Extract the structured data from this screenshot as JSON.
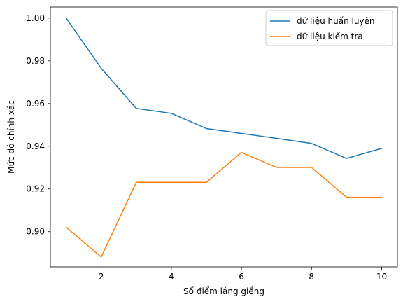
{
  "chart_data": {
    "type": "line",
    "xlabel": "Số điểm láng giềng",
    "ylabel": "Mức độ chính xác",
    "x": [
      1,
      2,
      3,
      4,
      5,
      6,
      7,
      8,
      9,
      10
    ],
    "xlim": [
      0.55,
      10.45
    ],
    "ylim": [
      0.8835,
      1.0052
    ],
    "xticks": [
      2,
      4,
      6,
      8,
      10
    ],
    "xtick_labels": [
      "2",
      "4",
      "6",
      "8",
      "10"
    ],
    "yticks": [
      0.9,
      0.92,
      0.94,
      0.96,
      0.98,
      1.0
    ],
    "ytick_labels": [
      "0.90",
      "0.92",
      "0.94",
      "0.96",
      "0.98",
      "1.00"
    ],
    "grid": false,
    "legend_position": "top-right",
    "series": [
      {
        "name": "dữ liệu huấn luyện",
        "color": "#1f77b4",
        "values": [
          1.0,
          0.9765,
          0.9577,
          0.9554,
          0.9483,
          0.946,
          0.9437,
          0.9413,
          0.9343,
          0.939
        ]
      },
      {
        "name": "dữ liệu kiểm tra",
        "color": "#ff7f0e",
        "values": [
          0.9021,
          0.8881,
          0.9231,
          0.9231,
          0.9231,
          0.9371,
          0.9301,
          0.9301,
          0.9161,
          0.9161
        ]
      }
    ]
  }
}
